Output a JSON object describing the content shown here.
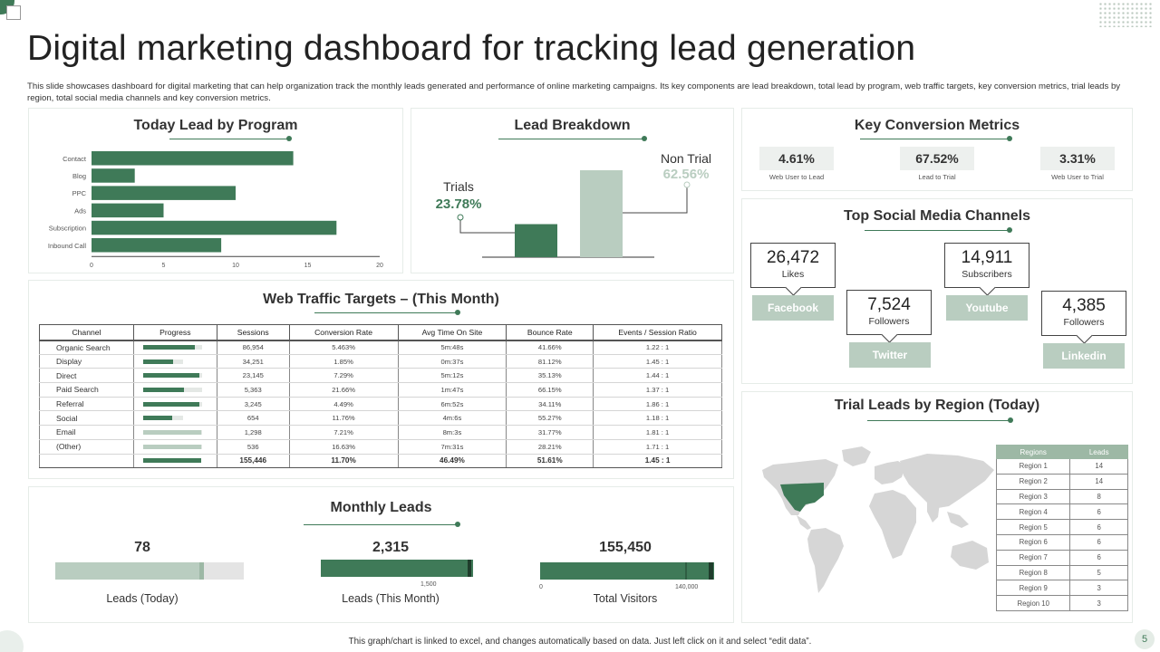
{
  "page": {
    "title": "Digital marketing dashboard for tracking lead generation",
    "description": "This slide showcases dashboard for digital marketing that can help organization track the monthly leads generated and performance of online marketing campaigns. Its key components are lead breakdown, total lead by program, web traffic targets, key conversion metrics, trial leads by region, total social media channels and key conversion metrics.",
    "footer": "This graph/chart is linked to excel, and changes automatically based on data. Just left click on it and select “edit data”.",
    "page_number": "5"
  },
  "colors": {
    "accent": "#3f7a58",
    "light": "#b9cdc0",
    "pale": "#edf0ee"
  },
  "lead_by_program": {
    "title": "Today Lead by Program",
    "categories": [
      "Contact",
      "Blog",
      "PPC",
      "Ads",
      "Subscription",
      "Inbound Call"
    ],
    "ticks": [
      "0",
      "5",
      "10",
      "15",
      "20"
    ]
  },
  "lead_breakdown": {
    "title": "Lead Breakdown",
    "trials_label": "Trials",
    "trials_value": "23.78%",
    "nontrial_label": "Non Trial",
    "nontrial_value": "62.56%"
  },
  "key_conversion": {
    "title": "Key Conversion Metrics",
    "items": [
      {
        "value": "4.61%",
        "label": "Web User to Lead"
      },
      {
        "value": "67.52%",
        "label": "Lead to Trial"
      },
      {
        "value": "3.31%",
        "label": "Web User to Trial"
      }
    ]
  },
  "social": {
    "title": "Top Social Media Channels",
    "items": [
      {
        "count": "26,472",
        "unit": "Likes",
        "channel": "Facebook"
      },
      {
        "count": "7,524",
        "unit": "Followers",
        "channel": "Twitter"
      },
      {
        "count": "14,911",
        "unit": "Subscribers",
        "channel": "Youtube"
      },
      {
        "count": "4,385",
        "unit": "Followers",
        "channel": "Linkedin"
      }
    ]
  },
  "web_traffic": {
    "title": "Web Traffic Targets – (This Month)",
    "headers": [
      "Channel",
      "Progress",
      "Sessions",
      "Conversion Rate",
      "Avg Time On Site",
      "Bounce Rate",
      "Events / Session Ratio"
    ],
    "rows": [
      {
        "channel": "Organic Search",
        "progress": 0.8,
        "target": 0.92,
        "sessions": "86,954",
        "conv": "5.463%",
        "time": "5m:48s",
        "bounce": "41.66%",
        "ratio": "1.22  :  1"
      },
      {
        "channel": "Display",
        "progress": 0.47,
        "target": 0.62,
        "sessions": "34,251",
        "conv": "1.85%",
        "time": "0m:37s",
        "bounce": "81.12%",
        "ratio": "1.45  :  1"
      },
      {
        "channel": "Direct",
        "progress": 0.88,
        "target": 0.92,
        "sessions": "23,145",
        "conv": "7.29%",
        "time": "5m:12s",
        "bounce": "35.13%",
        "ratio": "1.44  :  1"
      },
      {
        "channel": "Paid Search",
        "progress": 0.63,
        "target": 0.92,
        "sessions": "5,363",
        "conv": "21.66%",
        "time": "1m:47s",
        "bounce": "66.15%",
        "ratio": "1.37  :  1"
      },
      {
        "channel": "Referral",
        "progress": 0.88,
        "target": 0.92,
        "sessions": "3,245",
        "conv": "4.49%",
        "time": "6m:52s",
        "bounce": "34.11%",
        "ratio": "1.86  :  1"
      },
      {
        "channel": "Social",
        "progress": 0.45,
        "target": 0.62,
        "sessions": "654",
        "conv": "11.76%",
        "time": "4m:6s",
        "bounce": "55.27%",
        "ratio": "1.18  :  1"
      },
      {
        "channel": "Email",
        "progress": 0.9,
        "target": 0.92,
        "sessions": "1,298",
        "conv": "7.21%",
        "time": "8m:3s",
        "bounce": "31.77%",
        "ratio": "1.81  :  1"
      },
      {
        "channel": "(Other)",
        "progress": 0.9,
        "target": 0.92,
        "sessions": "536",
        "conv": "16.63%",
        "time": "7m:31s",
        "bounce": "28.21%",
        "ratio": "1.71  :  1"
      }
    ],
    "total": {
      "progress": 0.9,
      "sessions": "155,446",
      "conv": "11.70%",
      "time": "46.49%",
      "bounce": "51.61%",
      "ratio": "1.45  :  1"
    }
  },
  "region": {
    "title": "Trial Leads by Region (Today)",
    "headers": [
      "Regions",
      "Leads"
    ],
    "rows": [
      {
        "region": "Region 1",
        "leads": "14"
      },
      {
        "region": "Region 2",
        "leads": "14"
      },
      {
        "region": "Region 3",
        "leads": "8"
      },
      {
        "region": "Region 4",
        "leads": "6"
      },
      {
        "region": "Region 5",
        "leads": "6"
      },
      {
        "region": "Region 6",
        "leads": "6"
      },
      {
        "region": "Region 7",
        "leads": "6"
      },
      {
        "region": "Region 8",
        "leads": "5"
      },
      {
        "region": "Region 9",
        "leads": "3"
      },
      {
        "region": "Region 10",
        "leads": "3"
      }
    ]
  },
  "monthly": {
    "title": "Monthly Leads",
    "items": [
      {
        "value": "78",
        "label": "Leads (Today)"
      },
      {
        "value": "2,315",
        "label": "Leads (This Month)",
        "tick": "1,500"
      },
      {
        "value": "155,450",
        "label": "Total Visitors",
        "tick_start": "0",
        "tick_end": "140,000"
      }
    ]
  },
  "chart_data": [
    {
      "type": "bar",
      "orientation": "horizontal",
      "title": "Today Lead by Program",
      "categories": [
        "Contact",
        "Blog",
        "PPC",
        "Ads",
        "Subscription",
        "Inbound Call"
      ],
      "values": [
        14,
        3,
        10,
        5,
        17,
        9
      ],
      "xlim": [
        0,
        20
      ],
      "grid": false
    },
    {
      "type": "bar",
      "title": "Lead Breakdown",
      "categories": [
        "Trials",
        "Non Trial"
      ],
      "values": [
        23.78,
        62.56
      ]
    },
    {
      "type": "bar",
      "orientation": "horizontal",
      "title": "Monthly Leads",
      "series": [
        {
          "name": "Leads (Today)",
          "value": 78,
          "max": 85
        },
        {
          "name": "Leads (This Month)",
          "value": 2315,
          "target": 2250
        },
        {
          "name": "Total Visitors",
          "value": 155450,
          "target": 140000
        }
      ]
    }
  ]
}
